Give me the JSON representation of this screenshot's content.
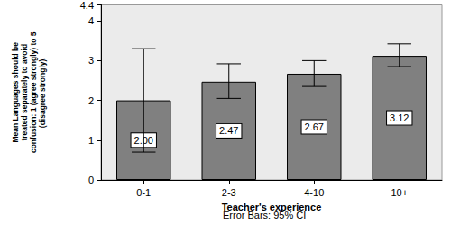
{
  "chart_data": {
    "type": "bar",
    "categories": [
      "0-1",
      "2-3",
      "4-10",
      "10+"
    ],
    "values": [
      2.0,
      2.47,
      2.67,
      3.12
    ],
    "value_labels": [
      "2.00",
      "2.47",
      "2.67",
      "3.12"
    ],
    "ci_low": [
      0.7,
      2.05,
      2.35,
      2.85
    ],
    "ci_high": [
      3.3,
      2.92,
      3.0,
      3.42
    ],
    "color": "#808080",
    "x_label": "Teacher's experience",
    "y_label": "Mean Languages should be\ntreated separately to avoid\nconfusion: 1 (agree strongly) to 5\n(disagree strongly).",
    "annotations": [
      "Error Bars: 95% CI"
    ],
    "ylim": [
      0,
      4.4
    ],
    "yticks": [
      0,
      1,
      2,
      3,
      4
    ],
    "grid": false,
    "data_labels": true
  }
}
